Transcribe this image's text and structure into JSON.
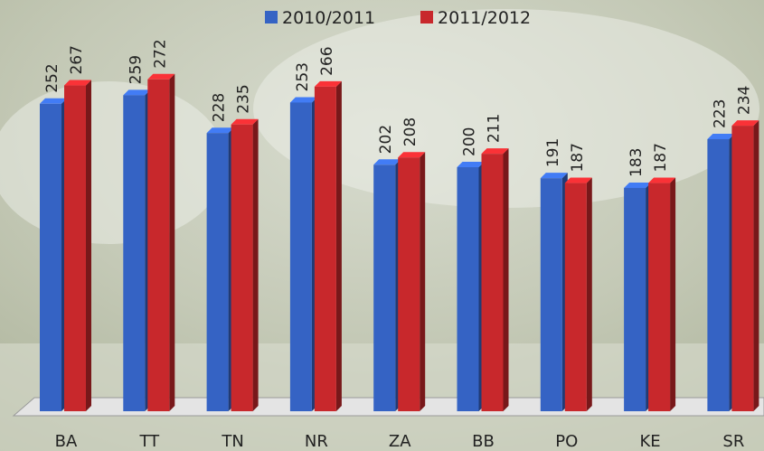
{
  "chart_data": {
    "type": "bar",
    "categories": [
      "BA",
      "TT",
      "TN",
      "NR",
      "ZA",
      "BB",
      "PO",
      "KE",
      "SR"
    ],
    "series": [
      {
        "name": "2010/2011",
        "color": "#3563c4",
        "values": [
          252,
          259,
          228,
          253,
          202,
          200,
          191,
          183,
          223
        ]
      },
      {
        "name": "2011/2012",
        "color": "#c8282c",
        "values": [
          267,
          272,
          235,
          266,
          208,
          211,
          187,
          187,
          234
        ]
      }
    ],
    "ylim": [
      0,
      300
    ],
    "legend": "top"
  }
}
